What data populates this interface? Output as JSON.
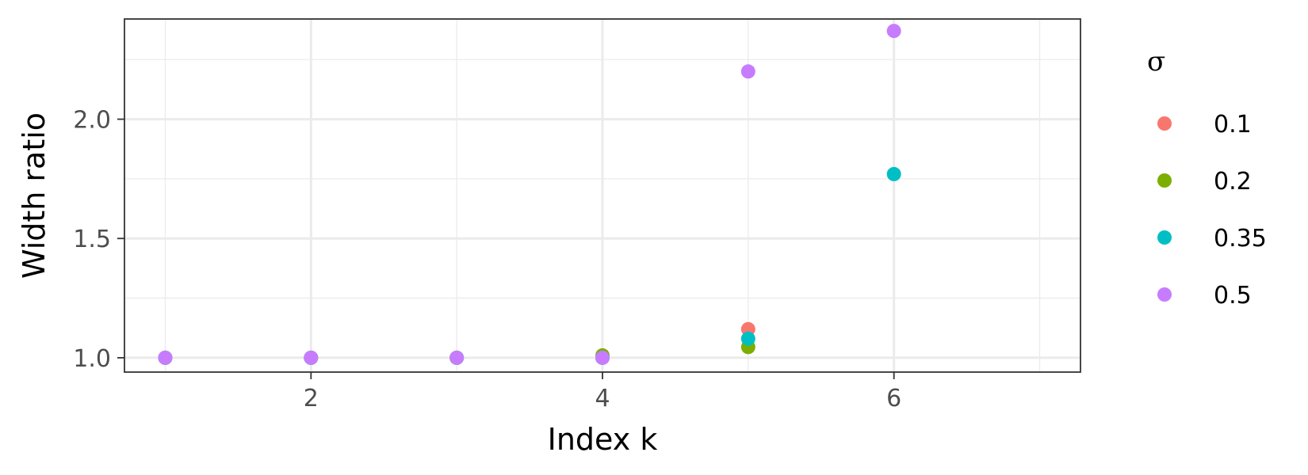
{
  "chart_data": {
    "type": "scatter",
    "xlabel": "Index k",
    "ylabel": "Width ratio",
    "xlim": [
      0.72,
      7.28
    ],
    "ylim": [
      0.94,
      2.42
    ],
    "x_ticks": [
      2,
      4,
      6
    ],
    "x_tick_labels": [
      "2",
      "4",
      "6"
    ],
    "y_ticks": [
      1.0,
      1.5,
      2.0
    ],
    "y_tick_labels": [
      "1.0",
      "1.5",
      "2.0"
    ],
    "grid": true,
    "legend": {
      "title": "σ",
      "position": "right"
    },
    "series": [
      {
        "name": "0.1",
        "color": "#F8766D",
        "x": [
          1,
          2,
          3,
          4,
          5
        ],
        "y": [
          1.0,
          1.0,
          1.0,
          1.0,
          1.12
        ]
      },
      {
        "name": "0.2",
        "color": "#7CAE00",
        "x": [
          1,
          2,
          3,
          4,
          5
        ],
        "y": [
          1.0,
          1.0,
          1.0,
          1.01,
          1.045
        ]
      },
      {
        "name": "0.35",
        "color": "#00BFC4",
        "x": [
          1,
          2,
          3,
          4,
          5,
          6
        ],
        "y": [
          1.0,
          1.0,
          1.0,
          1.0,
          1.08,
          1.77
        ]
      },
      {
        "name": "0.5",
        "color": "#C77CFF",
        "x": [
          1,
          2,
          3,
          4,
          5,
          6
        ],
        "y": [
          1.0,
          1.0,
          1.0,
          1.0,
          2.2,
          2.37
        ]
      }
    ]
  }
}
